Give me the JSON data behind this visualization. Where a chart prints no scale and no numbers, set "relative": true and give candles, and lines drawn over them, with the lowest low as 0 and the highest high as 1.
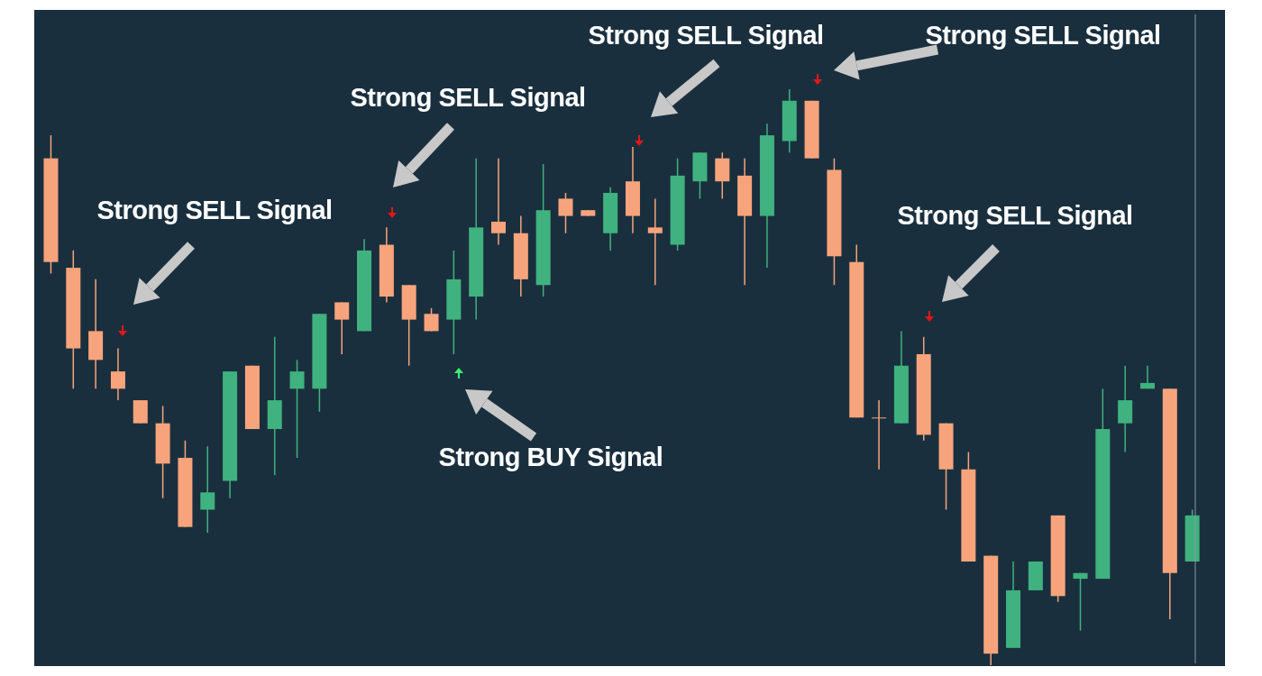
{
  "chart_data": {
    "type": "candlestick",
    "relative": true,
    "categories": [
      null,
      null,
      null,
      null,
      null,
      null,
      null,
      null,
      null,
      null,
      null,
      null,
      null,
      null,
      null,
      null,
      null,
      null,
      null,
      null,
      null,
      null,
      null,
      null,
      null,
      null,
      null,
      null,
      null,
      null,
      null,
      null,
      null,
      null,
      null,
      null,
      null,
      null,
      null,
      null,
      null,
      null,
      null,
      null,
      null,
      null,
      null,
      null,
      null,
      null,
      null,
      null
    ],
    "ohlc": [
      [
        0.88,
        0.92,
        0.68,
        0.7
      ],
      [
        0.69,
        0.72,
        0.48,
        0.55
      ],
      [
        0.58,
        0.67,
        0.48,
        0.53
      ],
      [
        0.51,
        0.55,
        0.46,
        0.48
      ],
      [
        0.46,
        0.46,
        0.42,
        0.42
      ],
      [
        0.42,
        0.45,
        0.29,
        0.35
      ],
      [
        0.36,
        0.39,
        0.24,
        0.24
      ],
      [
        0.27,
        0.38,
        0.23,
        0.3
      ],
      [
        0.32,
        0.51,
        0.29,
        0.51
      ],
      [
        0.52,
        0.52,
        0.41,
        0.41
      ],
      [
        0.41,
        0.57,
        0.33,
        0.46
      ],
      [
        0.48,
        0.53,
        0.36,
        0.51
      ],
      [
        0.48,
        0.61,
        0.44,
        0.61
      ],
      [
        0.63,
        0.63,
        0.54,
        0.6
      ],
      [
        0.58,
        0.74,
        0.58,
        0.72
      ],
      [
        0.73,
        0.76,
        0.63,
        0.64
      ],
      [
        0.66,
        0.66,
        0.52,
        0.6
      ],
      [
        0.61,
        0.62,
        0.58,
        0.58
      ],
      [
        0.6,
        0.72,
        0.54,
        0.67
      ],
      [
        0.64,
        0.88,
        0.6,
        0.76
      ],
      [
        0.77,
        0.88,
        0.73,
        0.75
      ],
      [
        0.75,
        0.78,
        0.64,
        0.67
      ],
      [
        0.66,
        0.87,
        0.64,
        0.79
      ],
      [
        0.81,
        0.82,
        0.75,
        0.78
      ],
      [
        0.79,
        0.79,
        0.78,
        0.78
      ],
      [
        0.75,
        0.83,
        0.72,
        0.82
      ],
      [
        0.84,
        0.9,
        0.75,
        0.78
      ],
      [
        0.76,
        0.81,
        0.66,
        0.75
      ],
      [
        0.73,
        0.88,
        0.72,
        0.85
      ],
      [
        0.84,
        0.89,
        0.81,
        0.89
      ],
      [
        0.88,
        0.89,
        0.81,
        0.84
      ],
      [
        0.85,
        0.88,
        0.66,
        0.78
      ],
      [
        0.78,
        0.94,
        0.69,
        0.92
      ],
      [
        0.91,
        1.0,
        0.89,
        0.98
      ],
      [
        0.98,
        0.98,
        0.88,
        0.88
      ],
      [
        0.86,
        0.88,
        0.66,
        0.71
      ],
      [
        0.7,
        0.73,
        0.43,
        0.43
      ],
      [
        0.43,
        0.46,
        0.34,
        0.43
      ],
      [
        0.42,
        0.58,
        0.42,
        0.52
      ],
      [
        0.54,
        0.57,
        0.39,
        0.4
      ],
      [
        0.42,
        0.42,
        0.27,
        0.34
      ],
      [
        0.34,
        0.37,
        0.18,
        0.18
      ],
      [
        0.19,
        0.19,
        0,
        0.02
      ],
      [
        0.03,
        0.18,
        0.03,
        0.13
      ],
      [
        0.13,
        0.18,
        0.13,
        0.18
      ],
      [
        0.26,
        0.26,
        0.11,
        0.12
      ],
      [
        0.15,
        0.16,
        0.06,
        0.16
      ],
      [
        0.15,
        0.48,
        0.15,
        0.41
      ],
      [
        0.42,
        0.52,
        0.37,
        0.46
      ],
      [
        0.48,
        0.52,
        0.48,
        0.49
      ],
      [
        0.48,
        0.48,
        0.08,
        0.16
      ],
      [
        0.18,
        0.27,
        0.18,
        0.26
      ]
    ],
    "colors": [
      "#f7a47c",
      "#f7a47c",
      "#f7a47c",
      "#f7a47c",
      "#f7a47c",
      "#f7a47c",
      "#f7a47c",
      "#3fb27f",
      "#3fb27f",
      "#f7a47c",
      "#3fb27f",
      "#3fb27f",
      "#3fb27f",
      "#f7a47c",
      "#3fb27f",
      "#f7a47c",
      "#f7a47c",
      "#f7a47c",
      "#3fb27f",
      "#3fb27f",
      "#f7a47c",
      "#f7a47c",
      "#3fb27f",
      "#f7a47c",
      "#f7a47c",
      "#3fb27f",
      "#f7a47c",
      "#f7a47c",
      "#3fb27f",
      "#3fb27f",
      "#f7a47c",
      "#f7a47c",
      "#3fb27f",
      "#3fb27f",
      "#f7a47c",
      "#f7a47c",
      "#f7a47c",
      "#f7a47c",
      "#3fb27f",
      "#f7a47c",
      "#f7a47c",
      "#f7a47c",
      "#f7a47c",
      "#3fb27f",
      "#3fb27f",
      "#f7a47c",
      "#3fb27f",
      "#3fb27f",
      "#3fb27f",
      "#3fb27f",
      "#f7a47c",
      "#3fb27f"
    ],
    "annotations": [
      "Strong SELL Signal",
      "Strong SELL Signal",
      "Strong SELL Signal",
      "Strong SELL Signal",
      "Strong SELL Signal",
      "Strong BUY Signal"
    ]
  }
}
